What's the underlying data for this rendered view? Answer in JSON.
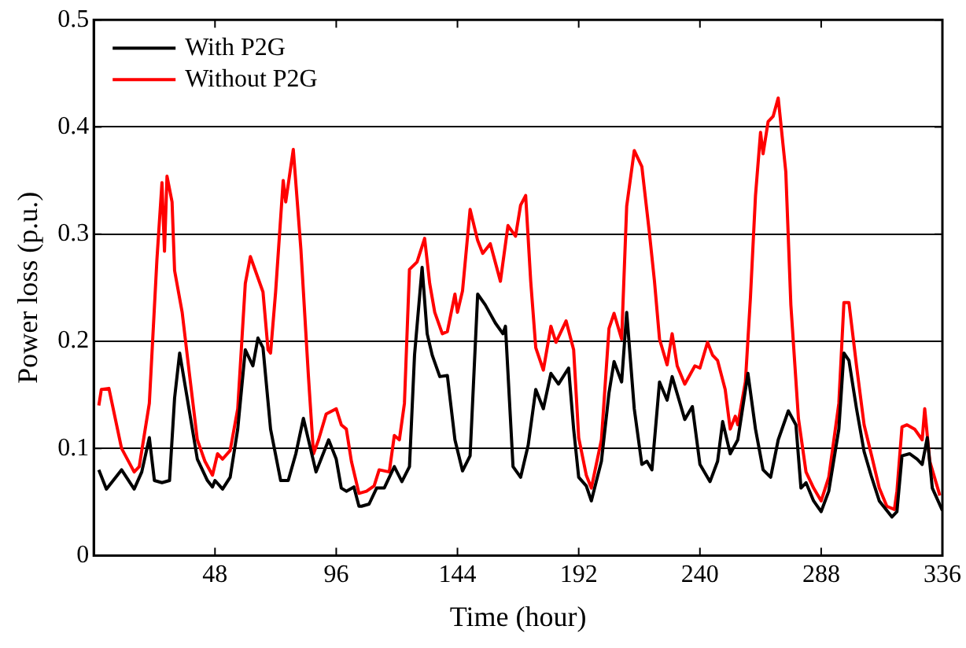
{
  "chart_data": {
    "type": "line",
    "xlabel": "Time (hour)",
    "ylabel": "Power loss (p.u.)",
    "xlim": [
      0,
      336
    ],
    "xticks": [
      48,
      96,
      144,
      192,
      240,
      288,
      336
    ],
    "ylim": [
      0,
      0.5
    ],
    "yticks": [
      0,
      0.1,
      0.2,
      0.3,
      0.4,
      0.5
    ],
    "grid": "y",
    "legend": "top left",
    "marker": "none",
    "line_style": "solid",
    "series": [
      {
        "name": "With P2G",
        "color": "#000000",
        "x": [
          2,
          5,
          11,
          16,
          19,
          22,
          24,
          27,
          30,
          32,
          34,
          37,
          41,
          45,
          47,
          48,
          51,
          54,
          57,
          60,
          63,
          65,
          67,
          70,
          74,
          77,
          80,
          83,
          85,
          88,
          90,
          93,
          96,
          98,
          100,
          103,
          105,
          106,
          109,
          112,
          115,
          119,
          122,
          125,
          127,
          130,
          132,
          134,
          137,
          140,
          143,
          146,
          149,
          152,
          155,
          159,
          162,
          163,
          166,
          169,
          172,
          175,
          178,
          181,
          184,
          188,
          190,
          192,
          195,
          197,
          201,
          204,
          206,
          209,
          211,
          214,
          217,
          219,
          221,
          224,
          227,
          229,
          234,
          237,
          240,
          244,
          247,
          249,
          252,
          255,
          259,
          262,
          265,
          268,
          271,
          275,
          278,
          280,
          282,
          285,
          288,
          291,
          295,
          297,
          299,
          302,
          305,
          308,
          311,
          316,
          318,
          320,
          323,
          326,
          328,
          330,
          332,
          336
        ],
        "values": [
          0.08,
          0.062,
          0.08,
          0.062,
          0.078,
          0.11,
          0.07,
          0.068,
          0.07,
          0.147,
          0.189,
          0.147,
          0.09,
          0.07,
          0.064,
          0.07,
          0.062,
          0.073,
          0.118,
          0.192,
          0.177,
          0.203,
          0.194,
          0.118,
          0.07,
          0.07,
          0.095,
          0.128,
          0.108,
          0.078,
          0.09,
          0.108,
          0.09,
          0.063,
          0.06,
          0.064,
          0.046,
          0.046,
          0.048,
          0.063,
          0.063,
          0.083,
          0.069,
          0.083,
          0.187,
          0.269,
          0.207,
          0.187,
          0.167,
          0.168,
          0.108,
          0.079,
          0.093,
          0.244,
          0.234,
          0.217,
          0.207,
          0.214,
          0.083,
          0.073,
          0.103,
          0.155,
          0.137,
          0.17,
          0.16,
          0.175,
          0.118,
          0.073,
          0.065,
          0.051,
          0.088,
          0.152,
          0.181,
          0.162,
          0.227,
          0.137,
          0.085,
          0.088,
          0.08,
          0.162,
          0.145,
          0.167,
          0.127,
          0.139,
          0.085,
          0.069,
          0.088,
          0.125,
          0.095,
          0.108,
          0.17,
          0.118,
          0.08,
          0.073,
          0.108,
          0.135,
          0.122,
          0.063,
          0.068,
          0.051,
          0.041,
          0.06,
          0.118,
          0.189,
          0.182,
          0.137,
          0.097,
          0.073,
          0.051,
          0.036,
          0.041,
          0.093,
          0.095,
          0.09,
          0.085,
          0.11,
          0.063,
          0.042
        ]
      },
      {
        "name": "Without P2G",
        "color": "#ff0000",
        "x": [
          2,
          3,
          6,
          11,
          16,
          18,
          22,
          25,
          27,
          28,
          29,
          31,
          32,
          35,
          38,
          41,
          44,
          47,
          49,
          51,
          54,
          57,
          60,
          62,
          67,
          69,
          70,
          72,
          75,
          76,
          79,
          82,
          85,
          87,
          89,
          92,
          96,
          98,
          100,
          102,
          105,
          108,
          111,
          113,
          117,
          119,
          121,
          123,
          125,
          128,
          131,
          133,
          135,
          138,
          140,
          143,
          144,
          146,
          149,
          152,
          154,
          157,
          161,
          164,
          167,
          169,
          171,
          173,
          175,
          178,
          181,
          183,
          187,
          190,
          192,
          195,
          197,
          201,
          204,
          206,
          209,
          211,
          214,
          217,
          220,
          222,
          224,
          227,
          229,
          231,
          234,
          238,
          240,
          243,
          245,
          247,
          250,
          252,
          254,
          255,
          258,
          260,
          262,
          264,
          265,
          267,
          269,
          271,
          274,
          276,
          279,
          282,
          285,
          288,
          291,
          295,
          297,
          299,
          302,
          305,
          308,
          311,
          314,
          317,
          318,
          320,
          322,
          325,
          328,
          329,
          331,
          335
        ],
        "values": [
          0.14,
          0.155,
          0.156,
          0.1,
          0.078,
          0.083,
          0.142,
          0.276,
          0.348,
          0.284,
          0.354,
          0.33,
          0.266,
          0.227,
          0.167,
          0.108,
          0.088,
          0.075,
          0.095,
          0.09,
          0.098,
          0.137,
          0.254,
          0.279,
          0.246,
          0.192,
          0.189,
          0.246,
          0.35,
          0.33,
          0.379,
          0.286,
          0.167,
          0.095,
          0.108,
          0.132,
          0.137,
          0.122,
          0.118,
          0.088,
          0.058,
          0.06,
          0.065,
          0.08,
          0.078,
          0.112,
          0.108,
          0.142,
          0.267,
          0.274,
          0.296,
          0.254,
          0.227,
          0.207,
          0.209,
          0.244,
          0.227,
          0.247,
          0.323,
          0.294,
          0.282,
          0.291,
          0.256,
          0.308,
          0.298,
          0.327,
          0.336,
          0.256,
          0.194,
          0.173,
          0.214,
          0.199,
          0.219,
          0.192,
          0.11,
          0.075,
          0.063,
          0.108,
          0.212,
          0.226,
          0.202,
          0.326,
          0.378,
          0.363,
          0.301,
          0.256,
          0.202,
          0.178,
          0.207,
          0.177,
          0.16,
          0.177,
          0.175,
          0.199,
          0.187,
          0.182,
          0.155,
          0.118,
          0.13,
          0.122,
          0.162,
          0.241,
          0.336,
          0.395,
          0.375,
          0.405,
          0.41,
          0.427,
          0.358,
          0.234,
          0.128,
          0.078,
          0.063,
          0.051,
          0.073,
          0.142,
          0.236,
          0.236,
          0.177,
          0.122,
          0.093,
          0.063,
          0.046,
          0.043,
          0.06,
          0.12,
          0.122,
          0.118,
          0.108,
          0.137,
          0.088,
          0.056
        ]
      }
    ]
  }
}
